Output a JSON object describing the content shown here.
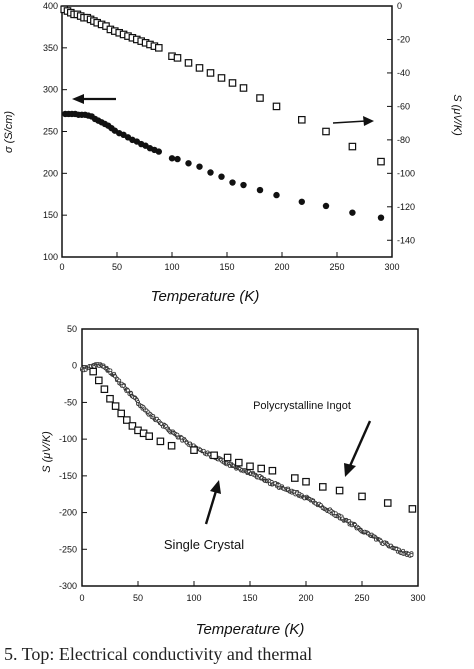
{
  "chart_data": [
    {
      "type": "scatter",
      "title": "",
      "xlabel": "Temperature (K)",
      "ylabel": "σ (S/cm)",
      "ylabel_right": "S (μV/K)",
      "xlim": [
        0,
        300
      ],
      "ylim": [
        100,
        400
      ],
      "ylim_right": [
        -150,
        0
      ],
      "xticks": [
        0,
        50,
        100,
        150,
        200,
        250,
        300
      ],
      "yticks": [
        100,
        150,
        200,
        250,
        300,
        350,
        400
      ],
      "yticks_right": [
        0,
        -20,
        -40,
        -60,
        -80,
        -100,
        -120,
        -140
      ],
      "grid": false,
      "series": [
        {
          "axis": "left",
          "marker": "filled-circle",
          "x": [
            3,
            6,
            9,
            12,
            15,
            18,
            21,
            24,
            27,
            30,
            33,
            36,
            39,
            42,
            45,
            48,
            52,
            56,
            60,
            64,
            68,
            72,
            76,
            80,
            84,
            88,
            100,
            105,
            115,
            125,
            135,
            145,
            155,
            165,
            180,
            195,
            218,
            240,
            264,
            290
          ],
          "y": [
            271,
            271,
            271,
            271,
            270,
            270,
            270,
            269,
            268,
            265,
            263,
            261,
            259,
            257,
            254,
            251,
            248,
            246,
            243,
            240,
            238,
            235,
            233,
            230,
            228,
            226,
            218,
            217,
            212,
            208,
            201,
            196,
            189,
            186,
            180,
            174,
            166,
            161,
            153,
            147
          ]
        },
        {
          "axis": "right",
          "marker": "open-square",
          "x": [
            2,
            5,
            8,
            11,
            14,
            17,
            20,
            23,
            26,
            29,
            32,
            36,
            40,
            44,
            48,
            52,
            56,
            60,
            64,
            68,
            72,
            76,
            80,
            84,
            88,
            100,
            105,
            115,
            125,
            135,
            145,
            155,
            165,
            180,
            195,
            218,
            240,
            264,
            290
          ],
          "y": [
            -2,
            -3,
            -4,
            -5,
            -5,
            -6,
            -7,
            -7,
            -8,
            -9,
            -10,
            -11,
            -12,
            -14,
            -15,
            -16,
            -17,
            -18,
            -19,
            -20,
            -21,
            -22,
            -23,
            -24,
            -25,
            -30,
            -31,
            -34,
            -37,
            -40,
            -43,
            -46,
            -49,
            -55,
            -60,
            -68,
            -75,
            -84,
            -93
          ]
        }
      ],
      "annotations": [
        "left-pointing arrow near filled circles (refers to left axis)",
        "right-pointing arrow near open squares (refers to right axis)"
      ]
    },
    {
      "type": "scatter",
      "title": "",
      "xlabel": "Temperature (K)",
      "ylabel": "S (μV/K)",
      "xlim": [
        0,
        300
      ],
      "ylim": [
        -300,
        50
      ],
      "xticks": [
        0,
        50,
        100,
        150,
        200,
        250,
        300
      ],
      "yticks": [
        50,
        0,
        -50,
        -100,
        -150,
        -200,
        -250,
        -300
      ],
      "grid": false,
      "series": [
        {
          "name": "Single Crystal",
          "marker": "dense-small-points",
          "x": [
            0,
            5,
            10,
            15,
            20,
            25,
            30,
            40,
            50,
            60,
            70,
            80,
            90,
            100,
            110,
            120,
            130,
            140,
            150,
            160,
            170,
            180,
            190,
            200,
            210,
            220,
            230,
            240,
            250,
            260,
            270,
            280,
            290,
            295
          ],
          "y": [
            -5,
            -4,
            0,
            2,
            -2,
            -8,
            -15,
            -33,
            -50,
            -65,
            -78,
            -90,
            -101,
            -110,
            -118,
            -126,
            -133,
            -140,
            -146,
            -153,
            -160,
            -167,
            -173,
            -180,
            -188,
            -197,
            -206,
            -215,
            -224,
            -233,
            -242,
            -250,
            -256,
            -258
          ]
        },
        {
          "name": "Polycrystalline Ingot",
          "marker": "open-square",
          "x": [
            10,
            15,
            20,
            25,
            30,
            35,
            40,
            45,
            50,
            55,
            60,
            70,
            80,
            100,
            118,
            130,
            140,
            150,
            160,
            170,
            190,
            200,
            215,
            230,
            250,
            273,
            295
          ],
          "y": [
            -8,
            -20,
            -32,
            -45,
            -55,
            -65,
            -74,
            -82,
            -88,
            -92,
            -96,
            -103,
            -109,
            -115,
            -122,
            -125,
            -132,
            -137,
            -140,
            -143,
            -153,
            -158,
            -165,
            -170,
            -178,
            -187,
            -195
          ]
        }
      ],
      "annotations": [
        {
          "text": "Polycrystalline Ingot",
          "target": "open-square series"
        },
        {
          "text": "Single Crystal",
          "target": "dense-point series"
        }
      ]
    }
  ],
  "caption": "5. Top: Electrical conductivity and thermal"
}
